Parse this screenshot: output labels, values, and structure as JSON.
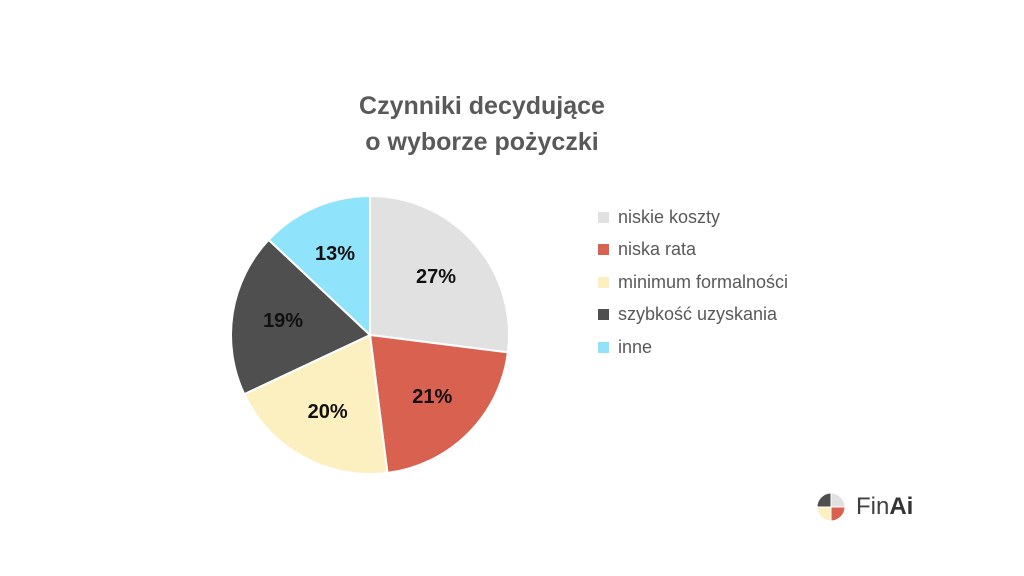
{
  "chart_data": {
    "type": "pie",
    "title": [
      "Czynniki decydujące",
      "o wyborze pożyczki"
    ],
    "categories": [
      "niskie koszty",
      "niska rata",
      "minimum formalności",
      "szybkość uzyskania",
      "inne"
    ],
    "values": [
      27,
      21,
      20,
      19,
      13
    ],
    "value_labels": [
      "27%",
      "21%",
      "20%",
      "19%",
      "13%"
    ],
    "colors": [
      "#e1e1e1",
      "#d9614f",
      "#fdf0c0",
      "#4f4f4f",
      "#8fe3fb"
    ],
    "start_angle_deg": 0,
    "direction": "clockwise",
    "legend_position": "right",
    "slice_border_color": "#ffffff"
  },
  "logo": {
    "text_fin": "Fin",
    "text_ai": "Ai",
    "icon": "pie-logo-icon",
    "icon_colors": [
      "#e1e1e1",
      "#d9614f",
      "#fdf0c0",
      "#4f4f4f"
    ]
  }
}
